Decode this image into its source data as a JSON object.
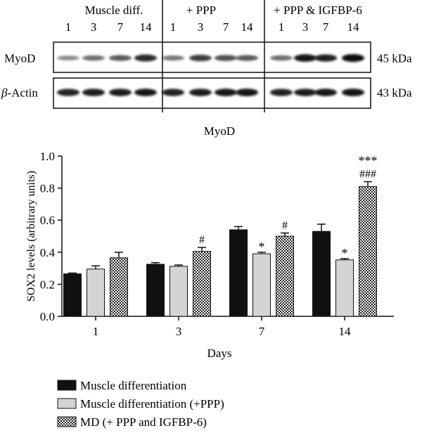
{
  "blot": {
    "groups": [
      "Muscle diff.",
      "+ PPP",
      "+ PPP & IGFBP-6"
    ],
    "lane_days": [
      "1",
      "3",
      "7",
      "14"
    ],
    "rows": [
      {
        "label": "MyoD",
        "kda": "45 kDa",
        "intensity": [
          0.35,
          0.5,
          0.6,
          0.85,
          0.45,
          0.75,
          0.65,
          0.6,
          0.5,
          0.95,
          0.9,
          1.0
        ]
      },
      {
        "label": "β-Actin",
        "kda": "43 kDa",
        "intensity": [
          0.9,
          0.92,
          0.94,
          0.95,
          0.9,
          0.93,
          0.95,
          0.97,
          0.9,
          0.93,
          0.95,
          0.97
        ]
      }
    ]
  },
  "chart_data": {
    "type": "bar",
    "title": "MyoD",
    "xlabel": "Days",
    "ylabel": "SOX2 levels (arbitrary units)",
    "ylim": [
      0.0,
      1.0
    ],
    "yticks": [
      "0.0",
      "0.2",
      "0.4",
      "0.6",
      "0.8",
      "1.0"
    ],
    "categories": [
      "1",
      "3",
      "7",
      "14"
    ],
    "series": [
      {
        "name": "Muscle differentiation",
        "fill": "#111111",
        "values": [
          0.265,
          0.325,
          0.54,
          0.53
        ],
        "errors": [
          0.005,
          0.01,
          0.02,
          0.045
        ],
        "annotations": [
          "",
          "",
          "",
          ""
        ]
      },
      {
        "name": "Muscle differentiation (+PPP)",
        "fill": "#d4d4d4",
        "values": [
          0.295,
          0.312,
          0.39,
          0.352
        ],
        "errors": [
          0.02,
          0.008,
          0.01,
          0.008
        ],
        "annotations": [
          "",
          "",
          "*",
          "*"
        ]
      },
      {
        "name": "MD (+ PPP and IGFBP-6)",
        "fill": "checker",
        "values": [
          0.365,
          0.405,
          0.5,
          0.81
        ],
        "errors": [
          0.035,
          0.025,
          0.02,
          0.03
        ],
        "annotations": [
          "",
          "#",
          "#",
          "***\n###"
        ]
      }
    ],
    "legend_position": "bottom-left"
  }
}
